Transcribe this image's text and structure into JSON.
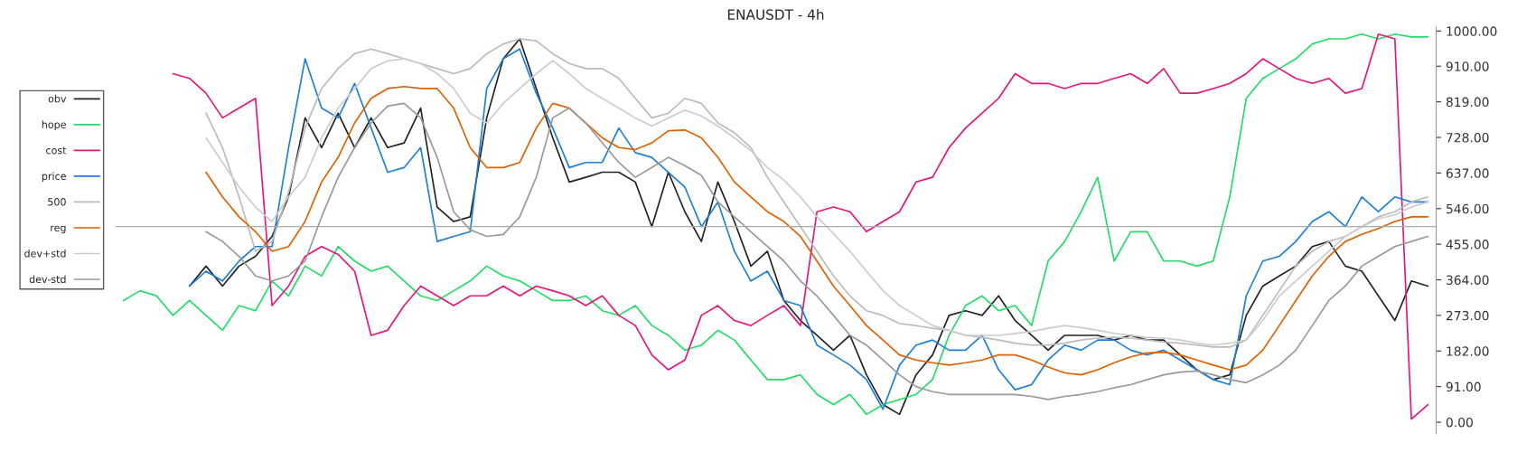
{
  "chart_data": {
    "type": "line",
    "title": "ENAUSDT - 4h",
    "categories": [
      null,
      null,
      null,
      null,
      null,
      null,
      null,
      null,
      null,
      null,
      null,
      null,
      null,
      null,
      null,
      null,
      null,
      null,
      null,
      null,
      null,
      null,
      null,
      null,
      null,
      null,
      null,
      null,
      null,
      null,
      null,
      null,
      null,
      null,
      null,
      null,
      null,
      null,
      null,
      null,
      null,
      null,
      null,
      null,
      null,
      null,
      null,
      null,
      null,
      null,
      null,
      null,
      null,
      null,
      null,
      null,
      null,
      null,
      null,
      null,
      null,
      null,
      null,
      null,
      null,
      null,
      null,
      null,
      null,
      null,
      null,
      null,
      null,
      null,
      null,
      null,
      null,
      null,
      null,
      null
    ],
    "series": [
      {
        "name": "obv",
        "color": "#222222",
        "values": [
          null,
          null,
          null,
          null,
          348,
          399,
          348,
          399,
          424,
          475,
          576,
          778,
          702,
          790,
          702,
          778,
          702,
          714,
          803,
          550,
          513,
          525,
          778,
          929,
          980,
          853,
          727,
          614,
          626,
          639,
          639,
          614,
          500,
          639,
          538,
          462,
          614,
          513,
          399,
          437,
          311,
          260,
          222,
          184,
          222,
          121,
          45,
          20,
          121,
          172,
          273,
          285,
          273,
          323,
          260,
          222,
          184,
          222,
          222,
          222,
          210,
          222,
          210,
          210,
          172,
          134,
          109,
          121,
          273,
          348,
          374,
          399,
          449,
          462,
          399,
          386,
          323,
          260,
          361,
          348
        ]
      },
      {
        "name": "hope",
        "color": "#22dd66",
        "values": [
          311,
          336,
          323,
          273,
          311,
          273,
          235,
          298,
          285,
          361,
          323,
          399,
          374,
          449,
          412,
          386,
          399,
          361,
          323,
          311,
          336,
          361,
          399,
          374,
          361,
          336,
          311,
          311,
          323,
          285,
          273,
          298,
          247,
          222,
          184,
          197,
          235,
          210,
          159,
          109,
          109,
          121,
          71,
          45,
          71,
          20,
          45,
          58,
          71,
          109,
          222,
          298,
          323,
          285,
          298,
          247,
          412,
          462,
          538,
          626,
          412,
          487,
          487,
          412,
          412,
          399,
          412,
          576,
          828,
          879,
          904,
          929,
          967,
          980,
          980,
          992,
          980,
          992,
          985,
          985
        ]
      },
      {
        "name": "cost",
        "color": "#e6157a",
        "values": [
          null,
          null,
          null,
          891,
          879,
          841,
          778,
          803,
          828,
          298,
          348,
          424,
          449,
          429,
          386,
          222,
          235,
          298,
          348,
          323,
          298,
          323,
          323,
          348,
          323,
          348,
          336,
          323,
          298,
          323,
          273,
          247,
          172,
          134,
          159,
          273,
          298,
          260,
          247,
          273,
          298,
          247,
          538,
          550,
          538,
          487,
          513,
          538,
          614,
          626,
          702,
          752,
          790,
          828,
          891,
          866,
          866,
          853,
          866,
          866,
          879,
          891,
          866,
          904,
          841,
          841,
          853,
          866,
          891,
          929,
          904,
          879,
          866,
          879,
          841,
          853,
          992,
          980,
          8,
          45
        ]
      },
      {
        "name": "price",
        "color": "#1e7fd8",
        "values": [
          null,
          null,
          null,
          null,
          348,
          386,
          361,
          412,
          449,
          449,
          702,
          929,
          803,
          778,
          866,
          752,
          639,
          651,
          702,
          462,
          475,
          487,
          853,
          929,
          954,
          841,
          752,
          651,
          664,
          664,
          752,
          689,
          677,
          639,
          601,
          500,
          563,
          437,
          361,
          386,
          311,
          298,
          197,
          172,
          146,
          109,
          33,
          146,
          197,
          210,
          184,
          184,
          222,
          134,
          83,
          96,
          159,
          197,
          184,
          210,
          210,
          184,
          172,
          184,
          159,
          134,
          109,
          96,
          323,
          412,
          424,
          462,
          513,
          538,
          500,
          576,
          538,
          576,
          563,
          563
        ]
      },
      {
        "name": "500",
        "color": "#bbbbbb",
        "values": [
          null,
          null,
          null,
          null,
          null,
          790,
          702,
          576,
          437,
          462,
          588,
          752,
          853,
          904,
          942,
          954,
          942,
          929,
          917,
          904,
          891,
          904,
          942,
          967,
          980,
          975,
          942,
          917,
          904,
          904,
          879,
          828,
          778,
          790,
          828,
          815,
          765,
          740,
          702,
          626,
          563,
          500,
          437,
          374,
          323,
          285,
          273,
          252,
          247,
          240,
          235,
          222,
          217,
          210,
          202,
          197,
          197,
          202,
          210,
          215,
          217,
          215,
          210,
          205,
          202,
          197,
          192,
          192,
          210,
          273,
          336,
          399,
          437,
          462,
          475,
          500,
          525,
          538,
          563,
          576
        ]
      },
      {
        "name": "reg",
        "color": "#e06000",
        "values": [
          null,
          null,
          null,
          null,
          null,
          639,
          576,
          525,
          487,
          437,
          449,
          513,
          614,
          677,
          765,
          828,
          853,
          858,
          853,
          853,
          803,
          702,
          651,
          651,
          664,
          752,
          815,
          803,
          765,
          727,
          702,
          697,
          714,
          745,
          747,
          727,
          677,
          614,
          576,
          538,
          513,
          475,
          412,
          348,
          298,
          247,
          210,
          172,
          159,
          152,
          146,
          152,
          159,
          172,
          172,
          159,
          141,
          126,
          121,
          134,
          152,
          167,
          177,
          179,
          172,
          159,
          146,
          134,
          146,
          184,
          247,
          311,
          374,
          424,
          462,
          480,
          495,
          513,
          525,
          525
        ]
      },
      {
        "name": "dev+std",
        "color": "#cccccc",
        "values": [
          null,
          null,
          null,
          null,
          null,
          727,
          664,
          601,
          550,
          513,
          576,
          626,
          727,
          803,
          853,
          904,
          924,
          929,
          917,
          891,
          853,
          790,
          765,
          815,
          853,
          891,
          924,
          891,
          853,
          828,
          803,
          778,
          757,
          778,
          798,
          783,
          757,
          727,
          694,
          651,
          619,
          576,
          525,
          482,
          437,
          386,
          336,
          298,
          273,
          247,
          235,
          222,
          222,
          222,
          227,
          232,
          240,
          247,
          242,
          235,
          227,
          222,
          217,
          215,
          210,
          202,
          197,
          202,
          210,
          260,
          323,
          361,
          399,
          437,
          475,
          500,
          520,
          530,
          550,
          563
        ]
      },
      {
        "name": "dev-std",
        "color": "#999999",
        "values": [
          null,
          null,
          null,
          null,
          null,
          487,
          462,
          424,
          374,
          361,
          374,
          412,
          525,
          626,
          702,
          765,
          808,
          815,
          778,
          677,
          538,
          492,
          475,
          480,
          525,
          626,
          778,
          803,
          765,
          714,
          664,
          626,
          651,
          677,
          656,
          631,
          563,
          525,
          487,
          449,
          412,
          361,
          323,
          273,
          222,
          197,
          159,
          121,
          91,
          78,
          71,
          71,
          71,
          71,
          71,
          66,
          58,
          66,
          71,
          78,
          88,
          96,
          109,
          121,
          128,
          131,
          121,
          109,
          101,
          121,
          146,
          184,
          247,
          311,
          348,
          399,
          424,
          449,
          462,
          475
        ]
      }
    ],
    "ylim": [
      -30,
      1010
    ],
    "yticks": [
      {
        "value": 0,
        "label": "0.00"
      },
      {
        "value": 91,
        "label": "91.00"
      },
      {
        "value": 182,
        "label": "182.00"
      },
      {
        "value": 273,
        "label": "273.00"
      },
      {
        "value": 364,
        "label": "364.00"
      },
      {
        "value": 455,
        "label": "455.00"
      },
      {
        "value": 546,
        "label": "546.00"
      },
      {
        "value": 637,
        "label": "637.00"
      },
      {
        "value": 728,
        "label": "728.00"
      },
      {
        "value": 819,
        "label": "819.00"
      },
      {
        "value": 910,
        "label": "910.00"
      },
      {
        "value": 1000,
        "label": "1000.00"
      }
    ],
    "ref_lines": [
      {
        "axis": "y",
        "value": 500,
        "color": "#aaaaaa"
      }
    ],
    "legend": "left",
    "tick_labels": "y"
  }
}
